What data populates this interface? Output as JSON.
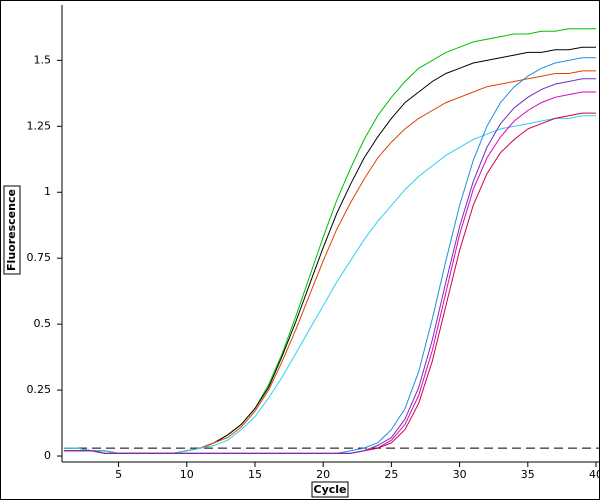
{
  "chart_data": {
    "type": "line",
    "x_label": "Cycle",
    "y_label": "Fluorescence",
    "x": [
      1,
      2,
      3,
      4,
      5,
      6,
      7,
      8,
      9,
      10,
      11,
      12,
      13,
      14,
      15,
      16,
      17,
      18,
      19,
      20,
      21,
      22,
      23,
      24,
      25,
      26,
      27,
      28,
      29,
      30,
      31,
      32,
      33,
      34,
      35,
      36,
      37,
      38,
      39,
      40
    ],
    "xlim": [
      1,
      40
    ],
    "xticks": [
      5,
      10,
      15,
      20,
      25,
      30,
      35,
      40
    ],
    "ylim": [
      -0.02,
      1.7
    ],
    "yticks": [
      0,
      0.25,
      0.5,
      0.75,
      1,
      1.25,
      1.5
    ],
    "threshold": 0.03,
    "series": [
      {
        "color": "#00c000",
        "values": [
          0.03,
          0.03,
          0.02,
          0.02,
          0.01,
          0.01,
          0.01,
          0.01,
          0.01,
          0.02,
          0.03,
          0.05,
          0.08,
          0.12,
          0.18,
          0.27,
          0.39,
          0.53,
          0.68,
          0.83,
          0.97,
          1.09,
          1.2,
          1.29,
          1.36,
          1.42,
          1.47,
          1.5,
          1.53,
          1.55,
          1.57,
          1.58,
          1.59,
          1.6,
          1.6,
          1.61,
          1.61,
          1.62,
          1.62,
          1.62
        ]
      },
      {
        "color": "#000000",
        "values": [
          0.03,
          0.03,
          0.02,
          0.02,
          0.01,
          0.01,
          0.01,
          0.01,
          0.01,
          0.02,
          0.03,
          0.05,
          0.08,
          0.12,
          0.18,
          0.26,
          0.38,
          0.51,
          0.65,
          0.79,
          0.92,
          1.03,
          1.13,
          1.21,
          1.28,
          1.34,
          1.38,
          1.42,
          1.45,
          1.47,
          1.49,
          1.5,
          1.51,
          1.52,
          1.53,
          1.53,
          1.54,
          1.54,
          1.55,
          1.55
        ]
      },
      {
        "color": "#e04000",
        "values": [
          0.03,
          0.03,
          0.02,
          0.02,
          0.01,
          0.01,
          0.01,
          0.01,
          0.01,
          0.02,
          0.03,
          0.05,
          0.07,
          0.11,
          0.17,
          0.25,
          0.36,
          0.48,
          0.61,
          0.74,
          0.86,
          0.96,
          1.05,
          1.13,
          1.19,
          1.24,
          1.28,
          1.31,
          1.34,
          1.36,
          1.38,
          1.4,
          1.41,
          1.42,
          1.43,
          1.44,
          1.45,
          1.45,
          1.46,
          1.46
        ]
      },
      {
        "color": "#30d0f0",
        "values": [
          0.03,
          0.03,
          0.02,
          0.02,
          0.01,
          0.01,
          0.01,
          0.01,
          0.01,
          0.02,
          0.03,
          0.04,
          0.06,
          0.1,
          0.15,
          0.22,
          0.3,
          0.39,
          0.48,
          0.57,
          0.66,
          0.74,
          0.82,
          0.89,
          0.95,
          1.01,
          1.06,
          1.1,
          1.14,
          1.17,
          1.2,
          1.22,
          1.24,
          1.25,
          1.26,
          1.27,
          1.28,
          1.28,
          1.29,
          1.29
        ]
      },
      {
        "color": "#1e90e0",
        "values": [
          0.02,
          0.02,
          0.02,
          0.01,
          0.01,
          0.01,
          0.01,
          0.01,
          0.01,
          0.01,
          0.01,
          0.01,
          0.01,
          0.01,
          0.01,
          0.01,
          0.01,
          0.01,
          0.01,
          0.01,
          0.01,
          0.02,
          0.03,
          0.05,
          0.1,
          0.18,
          0.32,
          0.52,
          0.74,
          0.95,
          1.12,
          1.25,
          1.34,
          1.4,
          1.44,
          1.47,
          1.49,
          1.5,
          1.51,
          1.51
        ]
      },
      {
        "color": "#e000c0",
        "values": [
          0.02,
          0.02,
          0.02,
          0.01,
          0.01,
          0.01,
          0.01,
          0.01,
          0.01,
          0.01,
          0.01,
          0.01,
          0.01,
          0.01,
          0.01,
          0.01,
          0.01,
          0.01,
          0.01,
          0.01,
          0.01,
          0.01,
          0.02,
          0.03,
          0.06,
          0.12,
          0.23,
          0.4,
          0.62,
          0.84,
          1.01,
          1.13,
          1.21,
          1.27,
          1.31,
          1.34,
          1.36,
          1.37,
          1.38,
          1.38
        ]
      },
      {
        "color": "#d00040",
        "values": [
          0.02,
          0.02,
          0.02,
          0.01,
          0.01,
          0.01,
          0.01,
          0.01,
          0.01,
          0.01,
          0.01,
          0.01,
          0.01,
          0.01,
          0.01,
          0.01,
          0.01,
          0.01,
          0.01,
          0.01,
          0.01,
          0.01,
          0.02,
          0.03,
          0.05,
          0.1,
          0.2,
          0.36,
          0.57,
          0.78,
          0.95,
          1.07,
          1.15,
          1.2,
          1.24,
          1.26,
          1.28,
          1.29,
          1.3,
          1.3
        ]
      },
      {
        "color": "#7030c0",
        "values": [
          0.02,
          0.02,
          0.02,
          0.01,
          0.01,
          0.01,
          0.01,
          0.01,
          0.01,
          0.01,
          0.01,
          0.01,
          0.01,
          0.01,
          0.01,
          0.01,
          0.01,
          0.01,
          0.01,
          0.01,
          0.01,
          0.01,
          0.02,
          0.04,
          0.07,
          0.14,
          0.26,
          0.44,
          0.66,
          0.87,
          1.04,
          1.17,
          1.26,
          1.32,
          1.36,
          1.39,
          1.41,
          1.42,
          1.43,
          1.43
        ]
      }
    ]
  }
}
